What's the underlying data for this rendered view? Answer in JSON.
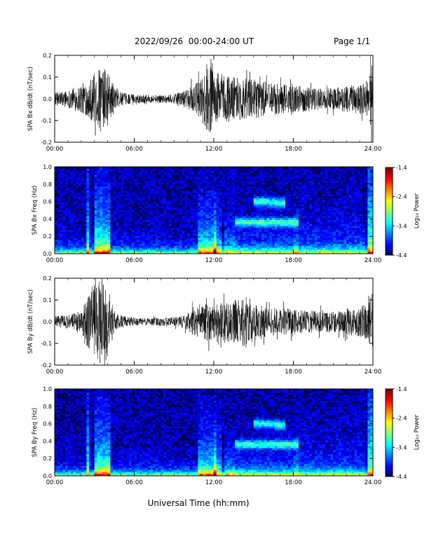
{
  "header": {
    "date_range": "2022/09/26  00:00-24:00 UT",
    "page": "Page 1/1"
  },
  "x_axis": {
    "ticks": [
      "00:00",
      "06:00",
      "12:00",
      "18:00",
      "24:00"
    ],
    "label": "Universal Time (hh:mm)"
  },
  "colorbar": {
    "label": "Log₁₀ Power",
    "ticks": [
      "-1.4",
      "-2.4",
      "-3.4",
      "-4.4"
    ],
    "range": [
      -4.4,
      -1.4
    ]
  },
  "chart_data": [
    {
      "type": "line",
      "ylabel": "SPA Bx dB/dt (nT/sec)",
      "xlim": [
        0,
        24
      ],
      "ylim": [
        -0.2,
        0.2
      ],
      "yticks": [
        "0.2",
        "0.1",
        "0.0",
        "-0.1",
        "-0.2"
      ],
      "envelope": {
        "hours": [
          0,
          1,
          2,
          2.5,
          3,
          3.5,
          4,
          4.5,
          5,
          6,
          7,
          8,
          9,
          10,
          10.5,
          11,
          11.5,
          12,
          12.5,
          13,
          14,
          15,
          16,
          17,
          18,
          19,
          20,
          21,
          22,
          23,
          23.7,
          24
        ],
        "amplitude": [
          0.03,
          0.04,
          0.07,
          0.08,
          0.12,
          0.15,
          0.13,
          0.06,
          0.03,
          0.02,
          0.018,
          0.018,
          0.022,
          0.04,
          0.07,
          0.09,
          0.17,
          0.13,
          0.12,
          0.11,
          0.1,
          0.09,
          0.08,
          0.07,
          0.06,
          0.06,
          0.05,
          0.05,
          0.06,
          0.07,
          0.09,
          0.2
        ]
      }
    },
    {
      "type": "heatmap",
      "ylabel": "SPA Bx Freq (Hz)",
      "xlim": [
        0,
        24
      ],
      "ylim": [
        0,
        1
      ],
      "yticks": [
        "1.0",
        "0.8",
        "0.6",
        "0.4",
        "0.2",
        "0.0"
      ],
      "zlim": [
        -4.4,
        -1.4
      ]
    },
    {
      "type": "line",
      "ylabel": "SPA By dB/dt (nT/sec)",
      "xlim": [
        0,
        24
      ],
      "ylim": [
        -0.2,
        0.2
      ],
      "yticks": [
        "0.2",
        "0.1",
        "0.0",
        "-0.1",
        "-0.2"
      ],
      "envelope": {
        "hours": [
          0,
          1,
          2,
          2.5,
          3,
          3.5,
          4,
          4.5,
          5,
          6,
          7,
          8,
          9,
          10,
          10.5,
          11,
          11.5,
          12,
          12.5,
          13,
          14,
          14.5,
          15,
          16,
          17,
          18,
          19,
          20,
          21,
          22,
          23,
          23.7,
          24
        ],
        "amplitude": [
          0.03,
          0.03,
          0.05,
          0.12,
          0.18,
          0.2,
          0.16,
          0.05,
          0.03,
          0.018,
          0.018,
          0.02,
          0.02,
          0.04,
          0.07,
          0.07,
          0.09,
          0.08,
          0.09,
          0.1,
          0.1,
          0.13,
          0.08,
          0.07,
          0.06,
          0.06,
          0.05,
          0.05,
          0.05,
          0.06,
          0.07,
          0.09,
          0.18
        ]
      }
    },
    {
      "type": "heatmap",
      "ylabel": "SPA By Freq (Hz)",
      "xlim": [
        0,
        24
      ],
      "ylim": [
        0,
        1
      ],
      "yticks": [
        "1.0",
        "0.8",
        "0.6",
        "0.4",
        "0.2",
        "0.0"
      ],
      "zlim": [
        -4.4,
        -1.4
      ]
    }
  ]
}
